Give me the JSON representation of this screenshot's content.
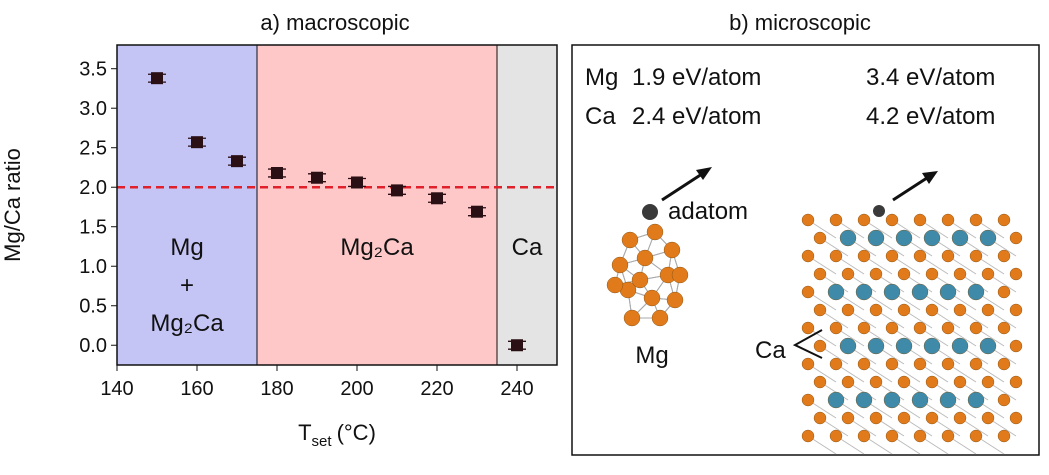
{
  "chart_data": {
    "type": "scatter",
    "title": "a) macroscopic",
    "xlabel": {
      "main": "T",
      "subscript": "set",
      "unit": "(°C)"
    },
    "ylabel": "Mg/Ca ratio",
    "x": [
      150,
      160,
      170,
      180,
      190,
      200,
      210,
      220,
      230,
      240
    ],
    "series": [
      {
        "color": "#2a0f14",
        "values": [
          3.38,
          2.57,
          2.33,
          2.18,
          2.12,
          2.06,
          1.96,
          1.86,
          1.69,
          0.0
        ],
        "errors": [
          0.05,
          0.05,
          0.05,
          0.05,
          0.05,
          0.05,
          0.05,
          0.05,
          0.05,
          0.05
        ]
      }
    ],
    "xlim": [
      140,
      250
    ],
    "ylim": [
      -0.25,
      3.8
    ],
    "xticks": [
      140,
      160,
      180,
      200,
      220,
      240
    ],
    "yticks": [
      {
        "value": 0,
        "label": "0.0"
      },
      0.5,
      {
        "value": 1,
        "label": "1.0"
      },
      1.5,
      {
        "value": 2,
        "label": "2.0"
      },
      2.5,
      {
        "value": 3,
        "label": "3.0"
      },
      3.5
    ],
    "hline": {
      "value": 2,
      "color": "#e0202a"
    },
    "regions": [
      {
        "from": 140,
        "to": 175,
        "color": "#c4c4f5",
        "label": [
          "Mg",
          "+",
          "Mg₂Ca"
        ]
      },
      {
        "from": 175,
        "to": 235,
        "color": "#ffc8c8",
        "label": [
          "Mg₂Ca"
        ]
      },
      {
        "from": 235,
        "to": 250,
        "color": "#e4e4e4",
        "label": [
          "Ca"
        ]
      }
    ]
  },
  "microscopic": {
    "title": "b) microscopic",
    "energies": [
      [
        "Mg",
        "1.9 eV/atom",
        "3.4 eV/atom"
      ],
      [
        "Ca",
        "2.4 eV/atom",
        "4.2 eV/atom"
      ]
    ],
    "labels": {
      "adatom": "adatom",
      "cluster": "Mg",
      "ca": "Ca"
    }
  }
}
